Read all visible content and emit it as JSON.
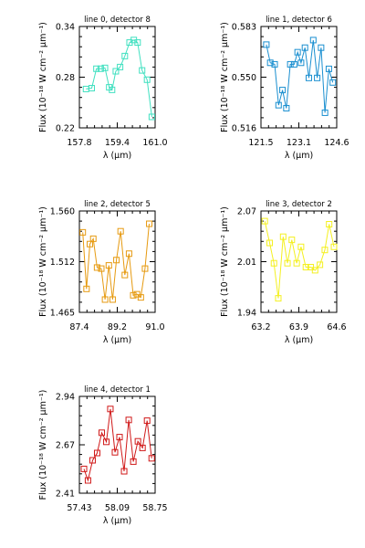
{
  "chart_data": [
    {
      "type": "line",
      "title": "line 0, detector 8",
      "xlabel": "λ (μm)",
      "ylabel": "Flux (10⁻¹⁸ W cm⁻² μm⁻¹)",
      "xlim": [
        157.8,
        161.0
      ],
      "ylim": [
        0.22,
        0.34
      ],
      "xticks": [
        "157.8",
        "159.4",
        "161.0"
      ],
      "yticks": [
        "0.22",
        "0.28",
        "0.34"
      ],
      "color": "#40e0c0",
      "series": [
        {
          "x": [
            158.08,
            158.32,
            158.52,
            158.7,
            158.88,
            159.06,
            159.18,
            159.34,
            159.52,
            159.72,
            159.92,
            160.1,
            160.26,
            160.45,
            160.66,
            160.86
          ],
          "y": [
            0.266,
            0.267,
            0.29,
            0.29,
            0.291,
            0.268,
            0.265,
            0.287,
            0.292,
            0.305,
            0.321,
            0.324,
            0.321,
            0.288,
            0.277,
            0.233
          ]
        }
      ]
    },
    {
      "type": "line",
      "title": "line 1, detector 6",
      "xlabel": "λ (μm)",
      "ylabel": "Flux (10⁻¹⁸ W cm⁻² μm⁻¹)",
      "xlim": [
        121.5,
        124.6
      ],
      "ylim": [
        0.516,
        0.583
      ],
      "xticks": [
        "121.5",
        "123.1",
        "124.6"
      ],
      "yticks": [
        "0.516",
        "0.550",
        "0.583"
      ],
      "color": "#1a8fd0",
      "series": [
        {
          "x": [
            121.72,
            121.88,
            122.06,
            122.22,
            122.38,
            122.54,
            122.7,
            122.86,
            123.0,
            123.14,
            123.3,
            123.46,
            123.64,
            123.8,
            123.96,
            124.12,
            124.28,
            124.44
          ],
          "y": [
            0.571,
            0.559,
            0.558,
            0.531,
            0.541,
            0.529,
            0.558,
            0.558,
            0.566,
            0.559,
            0.569,
            0.549,
            0.574,
            0.549,
            0.569,
            0.526,
            0.555,
            0.546
          ]
        }
      ]
    },
    {
      "type": "line",
      "title": "line 2, detector 5",
      "xlabel": "λ (μm)",
      "ylabel": "Flux (10⁻¹⁸ W cm⁻² μm⁻¹)",
      "xlim": [
        87.4,
        91.0
      ],
      "ylim": [
        1.465,
        1.56
      ],
      "xticks": [
        "87.4",
        "89.2",
        "91.0"
      ],
      "yticks": [
        "1.465",
        "1.512",
        "1.560"
      ],
      "color": "#e69a10",
      "series": [
        {
          "x": [
            87.56,
            87.74,
            87.9,
            88.06,
            88.24,
            88.44,
            88.62,
            88.8,
            88.98,
            89.16,
            89.36,
            89.56,
            89.76,
            89.96,
            90.14,
            90.32,
            90.52,
            90.72
          ],
          "y": [
            1.54,
            1.487,
            1.529,
            1.534,
            1.507,
            1.506,
            1.477,
            1.509,
            1.477,
            1.514,
            1.541,
            1.5,
            1.52,
            1.481,
            1.482,
            1.479,
            1.506,
            1.548
          ]
        }
      ]
    },
    {
      "type": "line",
      "title": "line 3, detector 2",
      "xlabel": "λ (μm)",
      "ylabel": "Flux (10⁻¹⁸ W cm⁻² μm⁻¹)",
      "xlim": [
        63.2,
        64.6
      ],
      "ylim": [
        1.94,
        2.07
      ],
      "xticks": [
        "63.2",
        "63.9",
        "64.6"
      ],
      "yticks": [
        "1.94",
        "2.01",
        "2.07"
      ],
      "color": "#f4f020",
      "series": [
        {
          "x": [
            63.27,
            63.36,
            63.44,
            63.52,
            63.61,
            63.69,
            63.77,
            63.86,
            63.94,
            64.03,
            64.12,
            64.2,
            64.29,
            64.38,
            64.46,
            64.55
          ],
          "y": [
            2.057,
            2.029,
            2.003,
            1.958,
            2.037,
            2.003,
            2.033,
            2.003,
            2.024,
            1.998,
            1.998,
            1.994,
            2.001,
            2.02,
            2.053,
            2.024
          ]
        }
      ]
    },
    {
      "type": "line",
      "title": "line 4, detector 1",
      "xlabel": "λ (μm)",
      "ylabel": "Flux (10⁻¹⁸ W cm⁻² μm⁻¹)",
      "xlim": [
        57.43,
        58.75
      ],
      "ylim": [
        2.41,
        2.94
      ],
      "xticks": [
        "57.43",
        "58.09",
        "58.75"
      ],
      "yticks": [
        "2.41",
        "2.67",
        "2.94"
      ],
      "color": "#d01818",
      "series": [
        {
          "x": [
            57.51,
            57.58,
            57.66,
            57.74,
            57.82,
            57.9,
            57.97,
            58.05,
            58.13,
            58.21,
            58.29,
            58.37,
            58.45,
            58.53,
            58.61,
            58.69
          ],
          "y": [
            2.543,
            2.48,
            2.59,
            2.63,
            2.741,
            2.691,
            2.871,
            2.634,
            2.717,
            2.53,
            2.811,
            2.583,
            2.694,
            2.658,
            2.807,
            2.601
          ]
        }
      ]
    }
  ]
}
